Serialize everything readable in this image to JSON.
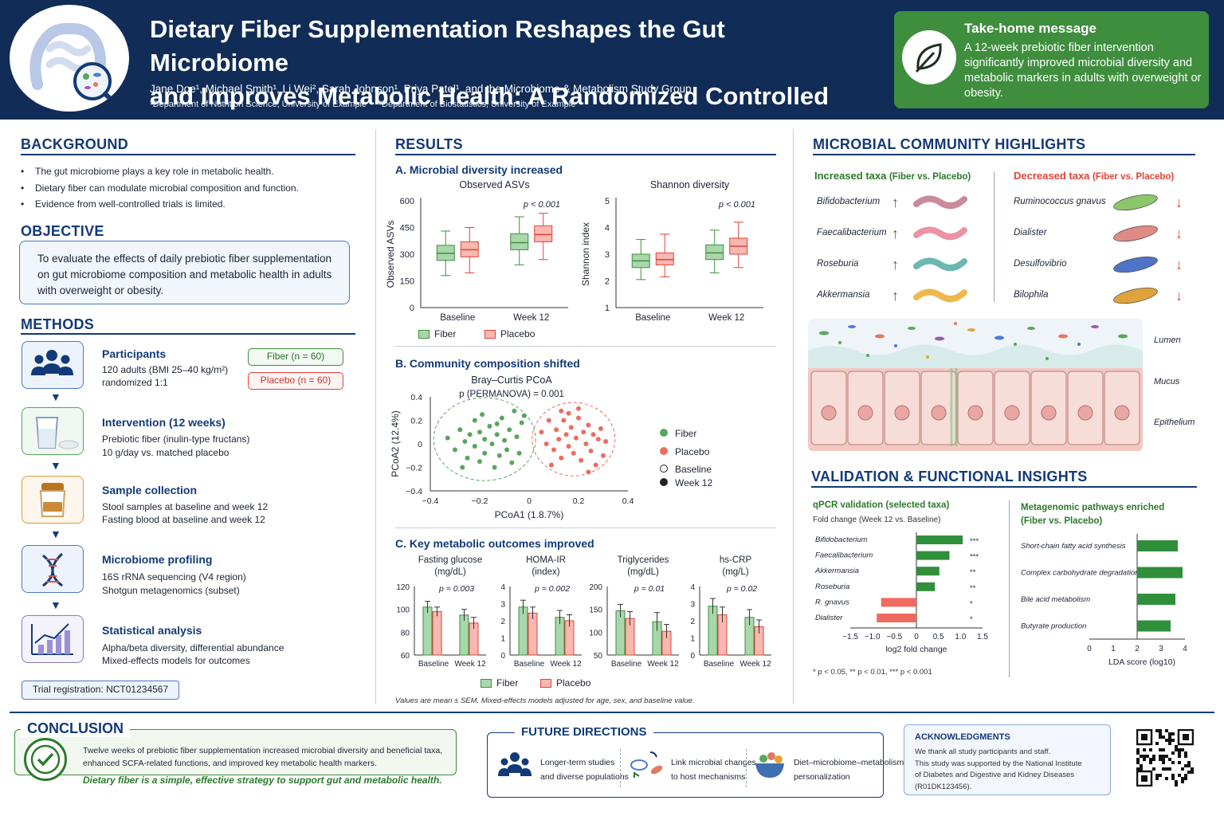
{
  "header": {
    "title_line1": "Dietary Fiber Supplementation Reshapes the Gut Microbiome",
    "title_line2": "and Improves Metabolic Health: A Randomized Controlled Trial",
    "authors": "Jane Doe¹, Michael Smith¹, Li Wei², Sarah Johnson¹, Priya Patel¹, and the Microbiome & Metabolism Study Group",
    "affil1": "¹Department of Nutrition Science, University of Example",
    "affil2": "²Department of Biostatistics, University of Example",
    "logo_icon": "intestine-magnifier-icon"
  },
  "takehome": {
    "heading": "Take-home message",
    "text": "A 12-week prebiotic fiber intervention significantly improved microbial diversity and metabolic markers in adults with overweight or obesity.",
    "icon": "leaf-icon"
  },
  "colors": {
    "fiber": "#7bbf7e",
    "placebo": "#f08b80",
    "navy": "#123a78",
    "green": "#3e8e3e",
    "red": "#e0433a"
  },
  "background": {
    "title": "BACKGROUND",
    "bullets": [
      "The gut microbiome plays a key role in metabolic health.",
      "Dietary fiber can modulate microbial composition and function.",
      "Evidence from well-controlled trials is limited."
    ]
  },
  "objective": {
    "title": "OBJECTIVE",
    "text": "To evaluate the effects of daily prebiotic fiber supplementation on gut microbiome composition and metabolic health in adults with overweight or obesity."
  },
  "methods": {
    "title": "METHODS",
    "steps": [
      {
        "icon": "people-icon",
        "heading": "Participants",
        "line1": "120 adults (BMI 25–40 kg/m²)",
        "line2": "randomized 1:1"
      },
      {
        "icon": "powder-glass-icon",
        "heading": "Intervention (12 weeks)",
        "line1": "Prebiotic fiber (inulin-type fructans)",
        "line2": "10 g/day vs. matched placebo"
      },
      {
        "icon": "sample-jar-icon",
        "heading": "Sample collection",
        "line1": "Stool samples at baseline and week 12",
        "line2": "Fasting blood at baseline and week 12"
      },
      {
        "icon": "dna-icon",
        "heading": "Microbiome profiling",
        "line1": "16S rRNA sequencing (V4 region)",
        "line2": "Shotgun metagenomics (subset)"
      },
      {
        "icon": "chart-icon",
        "heading": "Statistical analysis",
        "line1": "Alpha/beta diversity, differential abundance",
        "line2": "Mixed-effects models for outcomes"
      }
    ],
    "fiber_pill": "Fiber (n = 60)",
    "placebo_pill": "Placebo (n = 60)",
    "registration": "Trial registration: NCT01234567"
  },
  "results": {
    "title": "RESULTS",
    "a_title": "A.  Microbial diversity increased",
    "b_title": "B.  Community composition shifted",
    "c_title": "C.  Key metabolic outcomes improved",
    "legend_fiber": "Fiber",
    "legend_placebo": "Placebo",
    "legend_baseline": "Baseline",
    "legend_week12": "Week 12",
    "footnote": "Values are mean ± SEM. Mixed-effects models adjusted for age, sex, and baseline value."
  },
  "chart_data": [
    {
      "type": "box",
      "title": "Observed ASVs",
      "ylabel": "Observed ASVs",
      "ylim": [
        0,
        600
      ],
      "yticks": [
        "0",
        "150",
        "300",
        "450",
        "600"
      ],
      "categories": [
        "Baseline",
        "Week 12"
      ],
      "p_label": "p < 0.001",
      "series": [
        {
          "name": "Fiber",
          "boxes": [
            [
              180,
              265,
              305,
              350,
              430
            ],
            [
              240,
              325,
              365,
              415,
              510
            ]
          ]
        },
        {
          "name": "Placebo",
          "boxes": [
            [
              195,
              285,
              325,
              370,
              450
            ],
            [
              270,
              370,
              410,
              460,
              530
            ]
          ]
        }
      ]
    },
    {
      "type": "box",
      "title": "Shannon diversity",
      "ylabel": "Shannon index",
      "ylim": [
        1,
        5
      ],
      "yticks": [
        "1",
        "2",
        "3",
        "4",
        "5"
      ],
      "categories": [
        "Baseline",
        "Week 12"
      ],
      "p_label": "p < 0.001",
      "series": [
        {
          "name": "Fiber",
          "boxes": [
            [
              2.05,
              2.5,
              2.75,
              3.0,
              3.55
            ],
            [
              2.3,
              2.8,
              3.05,
              3.35,
              3.9
            ]
          ]
        },
        {
          "name": "Placebo",
          "boxes": [
            [
              2.15,
              2.6,
              2.8,
              3.05,
              3.75
            ],
            [
              2.5,
              3.0,
              3.3,
              3.6,
              4.2
            ]
          ]
        }
      ]
    },
    {
      "type": "scatter",
      "title": "Bray–Curtis PCoA",
      "p_label": "p (PERMANOVA) = 0.001",
      "xlabel": "PCoA1 (1.8.7%)",
      "ylabel": "PCoA2 (12.4%)",
      "xlim": [
        -0.4,
        0.4
      ],
      "ylim": [
        -0.4,
        0.4
      ],
      "xticks": [
        "−0.4",
        "−0.2",
        "0",
        "0.2",
        "0.4"
      ],
      "yticks": [
        "−0.4",
        "−0.2",
        "0",
        "0.2",
        "0.4"
      ],
      "series": [
        {
          "name": "Fiber",
          "points": [
            [
              -0.33,
              0.05
            ],
            [
              -0.3,
              -0.05
            ],
            [
              -0.28,
              0.12
            ],
            [
              -0.26,
              0.02
            ],
            [
              -0.25,
              -0.12
            ],
            [
              -0.24,
              0.08
            ],
            [
              -0.22,
              0.2
            ],
            [
              -0.22,
              -0.02
            ],
            [
              -0.2,
              0.1
            ],
            [
              -0.2,
              -0.15
            ],
            [
              -0.18,
              0.04
            ],
            [
              -0.18,
              -0.08
            ],
            [
              -0.16,
              0.15
            ],
            [
              -0.15,
              0.0
            ],
            [
              -0.14,
              -0.2
            ],
            [
              -0.13,
              0.08
            ],
            [
              -0.12,
              -0.1
            ],
            [
              -0.11,
              0.22
            ],
            [
              -0.1,
              0.03
            ],
            [
              -0.09,
              -0.05
            ],
            [
              -0.08,
              0.12
            ],
            [
              -0.07,
              -0.16
            ],
            [
              -0.06,
              0.28
            ],
            [
              -0.05,
              0.06
            ],
            [
              -0.04,
              -0.08
            ],
            [
              -0.03,
              0.18
            ],
            [
              -0.27,
              -0.2
            ],
            [
              -0.19,
              0.25
            ],
            [
              -0.13,
              0.17
            ],
            [
              -0.02,
              0.24
            ]
          ]
        },
        {
          "name": "Placebo",
          "points": [
            [
              0.05,
              0.1
            ],
            [
              0.07,
              0.0
            ],
            [
              0.08,
              0.2
            ],
            [
              0.1,
              -0.05
            ],
            [
              0.11,
              0.12
            ],
            [
              0.12,
              0.04
            ],
            [
              0.13,
              -0.12
            ],
            [
              0.14,
              0.2
            ],
            [
              0.15,
              0.08
            ],
            [
              0.16,
              -0.02
            ],
            [
              0.17,
              0.14
            ],
            [
              0.18,
              -0.08
            ],
            [
              0.19,
              0.05
            ],
            [
              0.2,
              0.22
            ],
            [
              0.21,
              -0.14
            ],
            [
              0.22,
              0.1
            ],
            [
              0.23,
              0.0
            ],
            [
              0.24,
              0.16
            ],
            [
              0.25,
              -0.06
            ],
            [
              0.26,
              0.08
            ],
            [
              0.27,
              -0.18
            ],
            [
              0.28,
              0.04
            ],
            [
              0.29,
              0.13
            ],
            [
              0.3,
              -0.1
            ],
            [
              0.31,
              0.02
            ],
            [
              0.13,
              0.28
            ],
            [
              0.2,
              0.3
            ],
            [
              0.09,
              -0.18
            ],
            [
              0.24,
              -0.24
            ],
            [
              0.16,
              0.26
            ]
          ]
        }
      ]
    },
    {
      "type": "bar",
      "title_line1": "Fasting glucose",
      "title_line2": "(mg/dL)",
      "p_label": "p = 0.003",
      "ylim": [
        60,
        120
      ],
      "yticks": [
        "60",
        "80",
        "100",
        "120"
      ],
      "categories": [
        "Baseline",
        "Week 12"
      ],
      "series": [
        {
          "name": "Fiber",
          "values": [
            102,
            95
          ],
          "err": [
            5,
            5
          ]
        },
        {
          "name": "Placebo",
          "values": [
            98,
            88
          ],
          "err": [
            4,
            5
          ]
        }
      ]
    },
    {
      "type": "bar",
      "title_line1": "HOMA-IR",
      "title_line2": "(index)",
      "p_label": "p = 0.002",
      "ylim": [
        0,
        4
      ],
      "yticks": [
        "0",
        "1",
        "2",
        "3",
        "4"
      ],
      "categories": [
        "Baseline",
        "Week 12"
      ],
      "series": [
        {
          "name": "Fiber",
          "values": [
            2.8,
            2.2
          ],
          "err": [
            0.4,
            0.4
          ]
        },
        {
          "name": "Placebo",
          "values": [
            2.45,
            2.0
          ],
          "err": [
            0.35,
            0.35
          ]
        }
      ]
    },
    {
      "type": "bar",
      "title_line1": "Triglycerides",
      "title_line2": "(mg/dL)",
      "p_label": "p = 0.01",
      "ylim": [
        50,
        200
      ],
      "yticks": [
        "50",
        "100",
        "150",
        "200"
      ],
      "categories": [
        "Baseline",
        "Week 12"
      ],
      "series": [
        {
          "name": "Fiber",
          "values": [
            147,
            123
          ],
          "err": [
            14,
            20
          ]
        },
        {
          "name": "Placebo",
          "values": [
            130,
            102
          ],
          "err": [
            15,
            15
          ]
        }
      ]
    },
    {
      "type": "bar",
      "title_line1": "hs-CRP",
      "title_line2": "(mg/L)",
      "p_label": "p = 0.02",
      "ylim": [
        0,
        4
      ],
      "yticks": [
        "0",
        "1",
        "2",
        "3",
        "4"
      ],
      "categories": [
        "Baseline",
        "Week 12"
      ],
      "series": [
        {
          "name": "Fiber",
          "values": [
            2.85,
            2.2
          ],
          "err": [
            0.45,
            0.45
          ]
        },
        {
          "name": "Placebo",
          "values": [
            2.35,
            1.65
          ],
          "err": [
            0.45,
            0.4
          ]
        }
      ]
    },
    {
      "type": "bar",
      "orientation": "horizontal",
      "heading": "qPCR validation (selected taxa)",
      "sublabel": "Fold change (Week 12 vs. Baseline)",
      "xlabel": "log2 fold change",
      "xlim": [
        -1.5,
        1.5
      ],
      "xticks": [
        "−1.5",
        "−1.0",
        "−0.5",
        "0",
        "0.5",
        "1.0",
        "1.5"
      ],
      "categories": [
        "Bifidobacterium",
        "Faecalibacterium",
        "Akkermansia",
        "Roseburia",
        "R. gnavus",
        "Dialister"
      ],
      "values": [
        1.05,
        0.75,
        0.52,
        0.42,
        -0.8,
        -0.9
      ],
      "sig": [
        "***",
        "***",
        "**",
        "**",
        "*",
        "*"
      ],
      "footnote": "* p < 0.05, ** p < 0.01, *** p < 0.001"
    },
    {
      "type": "bar",
      "orientation": "horizontal",
      "heading_line1": "Metagenomic pathways enriched",
      "heading_line2": "(Fiber vs. Placebo)",
      "xlabel": "LDA score (log10)",
      "xlim": [
        0,
        4
      ],
      "xticks": [
        "0",
        "1",
        "2",
        "3",
        "4"
      ],
      "categories": [
        "Short-chain fatty acid synthesis",
        "Complex carbohydrate degradation",
        "Bile acid metabolism",
        "Butyrate production"
      ],
      "values": [
        3.7,
        3.9,
        3.6,
        3.4
      ]
    }
  ],
  "microbial": {
    "title": "MICROBIAL COMMUNITY HIGHLIGHTS",
    "increased_label": "Increased taxa",
    "decreased_label": "Decreased taxa",
    "vs_label": "(Fiber vs. Placebo)",
    "increased": [
      "Bifidobacterium",
      "Faecalibacterium",
      "Roseburia",
      "Akkermansia"
    ],
    "decreased": [
      "Ruminococcus gnavus",
      "Dialister",
      "Desulfovibrio",
      "Bilophila"
    ],
    "layers": [
      "Lumen",
      "Mucus",
      "Epithelium"
    ]
  },
  "validation": {
    "title": "VALIDATION & FUNCTIONAL INSIGHTS"
  },
  "conclusion": {
    "title": "CONCLUSION",
    "text": "Twelve weeks of prebiotic fiber supplementation increased microbial diversity and beneficial taxa, enhanced SCFA-related functions, and improved key metabolic health markers.",
    "highlight": "Dietary fiber is a simple, effective strategy to support gut and metabolic health.",
    "icon": "check-circle-icon"
  },
  "future": {
    "title": "FUTURE DIRECTIONS",
    "items": [
      {
        "icon": "people-icon",
        "line1": "Longer-term studies",
        "line2": "and diverse populations"
      },
      {
        "icon": "microbe-link-icon",
        "line1": "Link microbial changes",
        "line2": "to host mechanisms"
      },
      {
        "icon": "food-bowl-icon",
        "line1": "Diet–microbiome–metabolism",
        "line2": "personalization"
      }
    ]
  },
  "ack": {
    "title": "ACKNOWLEDGMENTS",
    "line1": "We thank all study participants and staff.",
    "line2": "This study was supported by the National Institute",
    "line3": "of Diabetes and Digestive and Kidney Diseases",
    "line4": "(R01DK123456).",
    "qr_icon": "qr-code-icon"
  }
}
